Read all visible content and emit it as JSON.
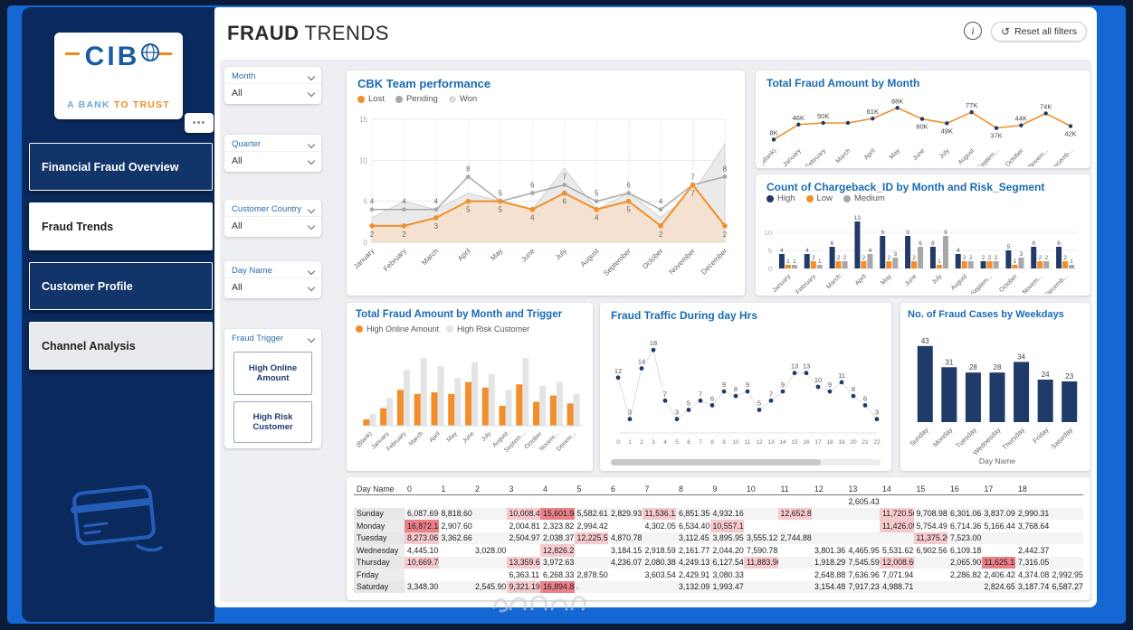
{
  "frame": {
    "watermark": "خمسات"
  },
  "sidebar": {
    "logo": {
      "brand": "CIB",
      "tagline_1": "A BANK",
      "tagline_2": "TO TRUST"
    },
    "more_label": "•••",
    "items": [
      {
        "label": "Financial Fraud Overview"
      },
      {
        "label": "Fraud Trends"
      },
      {
        "label": "Customer Profile"
      },
      {
        "label": "Channel Analysis"
      }
    ]
  },
  "header": {
    "title_bold": "FRAUD",
    "title_light": "TRENDS",
    "info_label": "i",
    "reset_icon": "↺",
    "reset_label": "Reset all filters"
  },
  "filters": [
    {
      "label": "Month",
      "value": "All"
    },
    {
      "label": "Quarter",
      "value": "All"
    },
    {
      "label": "Customer Country",
      "value": "All"
    },
    {
      "label": "Day Name",
      "value": "All"
    }
  ],
  "fraud_trigger": {
    "label": "Fraud Trigger",
    "buttons": [
      "High Online Amount",
      "High Risk Customer"
    ]
  },
  "colors": {
    "orange": "#F28E2B",
    "navy": "#203A69",
    "gray": "#A8A8A8",
    "light_gray": "#E4E4E4",
    "accent_blue": "#1A6BB5",
    "pink": "#F6C9CD",
    "red": "#EC8089"
  },
  "chart_data": [
    {
      "id": "cbk",
      "type": "line",
      "render": "cbk",
      "title": "CBK Team performance",
      "legend": [
        {
          "name": "Lost",
          "color": "#F28E2B"
        },
        {
          "name": "Pending",
          "color": "#A8A8A8"
        },
        {
          "name": "Won",
          "color": "#DCDCDC"
        }
      ],
      "categories": [
        "January",
        "February",
        "March",
        "April",
        "May",
        "June",
        "July",
        "August",
        "September",
        "October",
        "November",
        "December"
      ],
      "series": [
        {
          "name": "Won",
          "color": "#E2E2E2",
          "values": [
            3,
            5,
            4,
            6,
            5,
            4,
            9,
            4,
            6,
            3,
            6,
            12
          ]
        },
        {
          "name": "Pending",
          "color": "#A8A8A8",
          "values": [
            4,
            4,
            4,
            8,
            5,
            6,
            7,
            5,
            6,
            4,
            7,
            8
          ]
        },
        {
          "name": "Lost",
          "color": "#F28E2B",
          "values": [
            2,
            2,
            3,
            5,
            5,
            4,
            6,
            4,
            5,
            2,
            7,
            2
          ]
        }
      ],
      "ylim": [
        0,
        15
      ],
      "yticks": [
        0,
        5,
        10,
        15
      ],
      "grid": true,
      "legend_position": "top"
    },
    {
      "id": "fm",
      "type": "line",
      "render": "linelabel",
      "title": "Total Fraud Amount by Month",
      "categories": [
        "(Blank)",
        "January",
        "February",
        "March",
        "April",
        "May",
        "June",
        "July",
        "August",
        "Septem...",
        "October",
        "Novem...",
        "Decemb..."
      ],
      "values": [
        8,
        46,
        50,
        50,
        61,
        88,
        60,
        49,
        77,
        37,
        44,
        74,
        42
      ],
      "labels": [
        "8K",
        "46K",
        "50K",
        "",
        "61K",
        "88K",
        "60K",
        "49K",
        "77K",
        "37K",
        "44K",
        "74K",
        "42K"
      ],
      "line_color": "#F28E2B",
      "marker_color": "#203A69",
      "ylim": [
        0,
        100
      ],
      "grid": false
    },
    {
      "id": "cb",
      "type": "bar",
      "render": "groupbar",
      "title": "Count of Chargeback_ID by Month and Risk_Segment",
      "legend": [
        {
          "name": "High",
          "color": "#203A69"
        },
        {
          "name": "Low",
          "color": "#F28E2B"
        },
        {
          "name": "Medium",
          "color": "#A8A8A8"
        }
      ],
      "categories": [
        "January",
        "February",
        "March",
        "April",
        "May",
        "June",
        "July",
        "August",
        "Septem...",
        "October",
        "Novem...",
        "Decemb..."
      ],
      "series": [
        {
          "name": "High",
          "color": "#203A69",
          "values": [
            4,
            4,
            6,
            13,
            9,
            9,
            6,
            4,
            2,
            5,
            6,
            6
          ]
        },
        {
          "name": "Low",
          "color": "#F28E2B",
          "values": [
            1,
            2,
            2,
            2,
            2,
            2,
            1,
            2,
            2,
            1,
            2,
            2
          ]
        },
        {
          "name": "Medium",
          "color": "#A8A8A8",
          "values": [
            1,
            1,
            2,
            4,
            3,
            6,
            9,
            2,
            2,
            3,
            2,
            1
          ]
        }
      ],
      "ylim": [
        0,
        14
      ],
      "yticks": [
        0,
        5,
        10
      ],
      "legend_position": "top"
    },
    {
      "id": "tr",
      "type": "bar",
      "render": "clusterbar",
      "title": "Total Fraud Amount by Month and Trigger",
      "legend": [
        {
          "name": "High Online Amount",
          "color": "#F28E2B"
        },
        {
          "name": "High Risk Customer",
          "color": "#E4E4E4"
        }
      ],
      "categories": [
        "(Blank)",
        "January",
        "February",
        "March",
        "April",
        "May",
        "June",
        "July",
        "August",
        "Septem...",
        "October",
        "Novem...",
        "Decem..."
      ],
      "series": [
        {
          "name": "High Online Amount",
          "color": "#F28E2B",
          "values": [
            8,
            22,
            45,
            40,
            42,
            40,
            55,
            48,
            25,
            52,
            30,
            38,
            28
          ]
        },
        {
          "name": "High Risk Customer",
          "color": "#E4E4E4",
          "values": [
            15,
            35,
            70,
            85,
            75,
            60,
            80,
            65,
            45,
            85,
            50,
            55,
            40
          ]
        }
      ],
      "ylim": [
        0,
        100
      ],
      "legend_position": "top"
    },
    {
      "id": "tf",
      "type": "scatter",
      "render": "scatter",
      "title": "Fraud Traffic During day Hrs",
      "x": [
        0,
        1,
        2,
        3,
        4,
        5,
        6,
        7,
        8,
        9,
        10,
        11,
        12,
        13,
        14,
        15,
        16,
        17,
        18,
        19,
        20,
        21,
        22
      ],
      "values": [
        12,
        3,
        14,
        18,
        7,
        3,
        5,
        7,
        6,
        9,
        8,
        9,
        5,
        7,
        9,
        13,
        13,
        10,
        9,
        11,
        8,
        6,
        3
      ],
      "color": "#203A69",
      "ylim": [
        0,
        20
      ]
    },
    {
      "id": "wd",
      "type": "bar",
      "render": "bar",
      "title": "No. of Fraud Cases by Weekdays",
      "categories": [
        "Sunday",
        "Monday",
        "Tuesday",
        "Wednesday",
        "Thursday",
        "Friday",
        "Saturday"
      ],
      "values": [
        43,
        31,
        28,
        28,
        34,
        24,
        23
      ],
      "xlabel": "Day Name",
      "color": "#203A69",
      "ylim": [
        0,
        48
      ]
    }
  ],
  "table": {
    "corner": "Day Name",
    "columns": [
      "0",
      "1",
      "2",
      "3",
      "4",
      "5",
      "6",
      "7",
      "8",
      "9",
      "10",
      "11",
      "12",
      "13",
      "14",
      "15",
      "16",
      "17",
      "18",
      ""
    ],
    "rows": [
      {
        "label": "",
        "cells": [
          [
            13,
            "2,605.43",
            ""
          ]
        ]
      },
      {
        "label": "Sunday",
        "cells": [
          [
            0,
            "6,087.69",
            ""
          ],
          [
            1,
            "8,818.60",
            ""
          ],
          [
            3,
            "10,008.43",
            "p"
          ],
          [
            4,
            "15,601.94",
            "r"
          ],
          [
            5,
            "5,582.61",
            ""
          ],
          [
            6,
            "2,829.93",
            ""
          ],
          [
            7,
            "11,536.12",
            "p"
          ],
          [
            8,
            "6,851.35",
            ""
          ],
          [
            9,
            "4,932.16",
            ""
          ],
          [
            11,
            "12,652.82",
            "p"
          ],
          [
            14,
            "11,720.56",
            "p"
          ],
          [
            15,
            "9,708.98",
            ""
          ],
          [
            16,
            "6,301.06",
            ""
          ],
          [
            17,
            "3,837.09",
            ""
          ],
          [
            18,
            "2,990.31",
            ""
          ]
        ]
      },
      {
        "label": "Monday",
        "cells": [
          [
            0,
            "16,872.18",
            "r"
          ],
          [
            1,
            "2,907.60",
            ""
          ],
          [
            3,
            "2,004.81",
            ""
          ],
          [
            4,
            "2,323.82",
            ""
          ],
          [
            5,
            "2,994.42",
            ""
          ],
          [
            7,
            "4,302.05",
            ""
          ],
          [
            8,
            "6,534.40",
            ""
          ],
          [
            9,
            "10,557.12",
            "p"
          ],
          [
            14,
            "11,426.05",
            "p"
          ],
          [
            15,
            "5,754.49",
            ""
          ],
          [
            16,
            "6,714.36",
            ""
          ],
          [
            17,
            "5,166.44",
            ""
          ],
          [
            18,
            "3,768.64",
            ""
          ]
        ]
      },
      {
        "label": "Tuesday",
        "cells": [
          [
            0,
            "8,273.06",
            "p"
          ],
          [
            1,
            "3,362.66",
            ""
          ],
          [
            3,
            "2,504.97",
            ""
          ],
          [
            4,
            "2,038.37",
            ""
          ],
          [
            5,
            "12,225.55",
            "p"
          ],
          [
            6,
            "4,870.78",
            ""
          ],
          [
            8,
            "3,112.45",
            ""
          ],
          [
            9,
            "3,895.95",
            ""
          ],
          [
            10,
            "3,555.12",
            ""
          ],
          [
            11,
            "2,744.88",
            ""
          ],
          [
            15,
            "11,375.20",
            "p"
          ],
          [
            16,
            "7,523.00",
            ""
          ]
        ]
      },
      {
        "label": "Wednesday",
        "cells": [
          [
            0,
            "4,445.10",
            ""
          ],
          [
            2,
            "3,028.00",
            ""
          ],
          [
            4,
            "12,826.26",
            "p"
          ],
          [
            6,
            "3,184.15",
            ""
          ],
          [
            7,
            "2,918.59",
            ""
          ],
          [
            8,
            "2,161.77",
            ""
          ],
          [
            9,
            "2,044.20",
            ""
          ],
          [
            10,
            "7,590.78",
            ""
          ],
          [
            12,
            "3,801.36",
            ""
          ],
          [
            13,
            "4,465.95",
            ""
          ],
          [
            14,
            "5,531.62",
            ""
          ],
          [
            15,
            "6,902.56",
            ""
          ],
          [
            16,
            "6,109.18",
            ""
          ],
          [
            18,
            "2,442.37",
            ""
          ]
        ]
      },
      {
        "label": "Thursday",
        "cells": [
          [
            0,
            "10,669.76",
            "p"
          ],
          [
            3,
            "13,359.66",
            "p"
          ],
          [
            4,
            "3,972.63",
            ""
          ],
          [
            6,
            "4,236.07",
            ""
          ],
          [
            7,
            "2,080.38",
            ""
          ],
          [
            8,
            "4,249.13",
            ""
          ],
          [
            9,
            "6,127.54",
            ""
          ],
          [
            10,
            "11,883.96",
            "p"
          ],
          [
            12,
            "1,918.29",
            ""
          ],
          [
            13,
            "7,545.59",
            ""
          ],
          [
            14,
            "12,008.60",
            "p"
          ],
          [
            16,
            "2,065.90",
            ""
          ],
          [
            17,
            "11,625.13",
            "r"
          ],
          [
            18,
            "7,316.05",
            ""
          ]
        ]
      },
      {
        "label": "Friday",
        "cells": [
          [
            3,
            "6,363.11",
            ""
          ],
          [
            4,
            "6,268.33",
            ""
          ],
          [
            5,
            "2,878.50",
            ""
          ],
          [
            7,
            "3,603.54",
            ""
          ],
          [
            8,
            "2,429.91",
            ""
          ],
          [
            9,
            "3,080.33",
            ""
          ],
          [
            12,
            "2,648.88",
            ""
          ],
          [
            13,
            "7,636.96",
            ""
          ],
          [
            14,
            "7,071.94",
            ""
          ],
          [
            16,
            "2,286.82",
            ""
          ],
          [
            17,
            "2,406.42",
            ""
          ],
          [
            18,
            "4,374.08",
            ""
          ],
          [
            19,
            "2,992.95",
            ""
          ]
        ]
      },
      {
        "label": "Saturday",
        "cells": [
          [
            0,
            "3,348.30",
            ""
          ],
          [
            2,
            "2,545.90",
            ""
          ],
          [
            3,
            "9,321.19",
            "p"
          ],
          [
            4,
            "16,894.88",
            "r"
          ],
          [
            8,
            "3,132.09",
            ""
          ],
          [
            9,
            "1,993.47",
            ""
          ],
          [
            12,
            "3,154.48",
            ""
          ],
          [
            13,
            "7,917.23",
            ""
          ],
          [
            14,
            "4,988.71",
            ""
          ],
          [
            17,
            "2,824.65",
            ""
          ],
          [
            18,
            "3,187.74",
            ""
          ],
          [
            19,
            "6,587.27",
            ""
          ]
        ]
      }
    ]
  }
}
